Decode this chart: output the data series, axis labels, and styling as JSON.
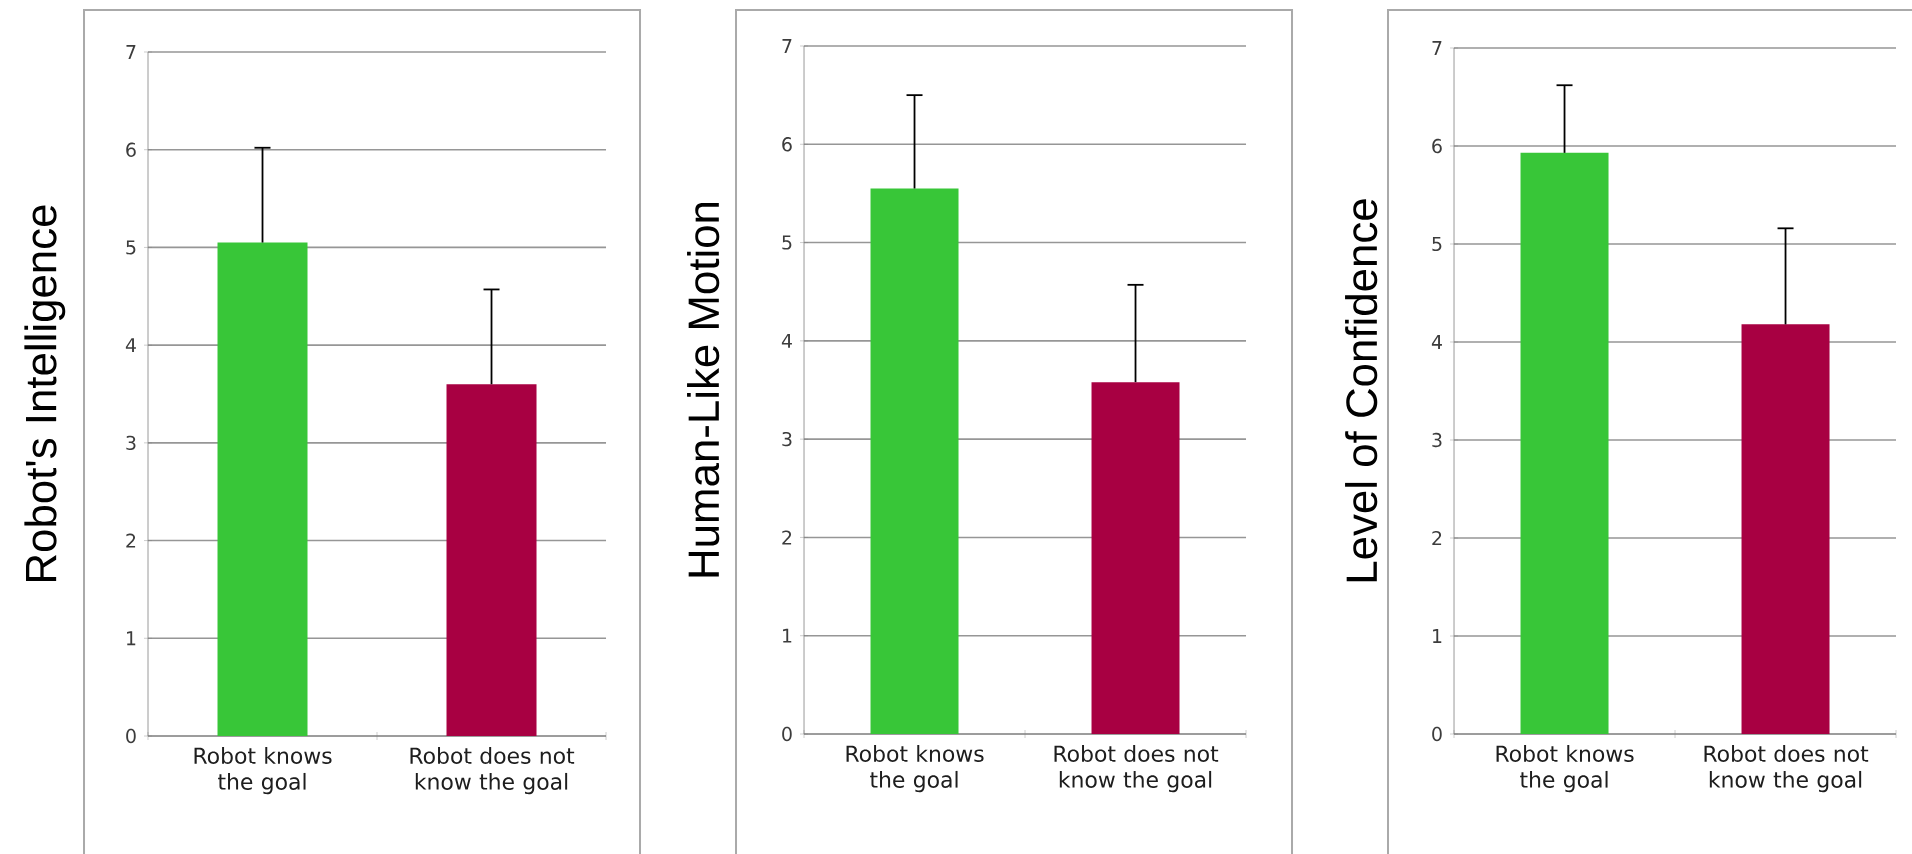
{
  "chart_data": [
    {
      "type": "bar",
      "ylabel": "Robot's Intelligence",
      "categories": [
        "Robot knows the goal",
        "Robot does not know the goal"
      ],
      "values": [
        5.05,
        3.6
      ],
      "colors": [
        "#38c638",
        "#a80042"
      ],
      "errors": [
        [
          5.05,
          6.02
        ],
        [
          3.6,
          4.57
        ]
      ],
      "ylim": [
        0,
        7
      ],
      "yticks": [
        0,
        1,
        2,
        3,
        4,
        5,
        6,
        7
      ],
      "grid": "y"
    },
    {
      "type": "bar",
      "ylabel": "Human-Like Motion",
      "categories": [
        "Robot knows the goal",
        "Robot does not know the goal"
      ],
      "values": [
        5.55,
        3.58
      ],
      "colors": [
        "#38c638",
        "#a80042"
      ],
      "errors": [
        [
          5.55,
          6.5
        ],
        [
          3.58,
          4.57
        ]
      ],
      "ylim": [
        0,
        7
      ],
      "yticks": [
        0,
        1,
        2,
        3,
        4,
        5,
        6,
        7
      ],
      "grid": "y"
    },
    {
      "type": "bar",
      "ylabel": "Level of Confidence",
      "categories": [
        "Robot knows the goal",
        "Robot does not know the goal"
      ],
      "values": [
        5.93,
        4.18
      ],
      "colors": [
        "#38c638",
        "#a80042"
      ],
      "errors": [
        [
          5.93,
          6.62
        ],
        [
          4.18,
          5.16
        ]
      ],
      "ylim": [
        0,
        7
      ],
      "yticks": [
        0,
        1,
        2,
        3,
        4,
        5,
        6,
        7
      ],
      "grid": "y"
    }
  ]
}
